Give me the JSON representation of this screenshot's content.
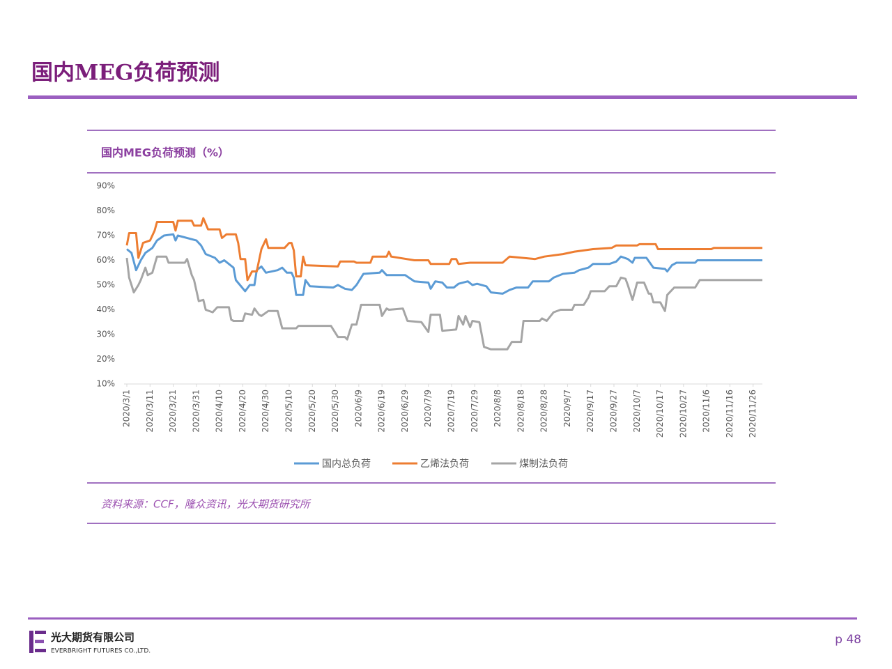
{
  "header": {
    "title": "国内MEG负荷预测"
  },
  "chart_data": {
    "type": "line",
    "title": "国内MEG负荷预测（%）",
    "source": "资料来源：CCF，隆众资讯，光大期货研究所",
    "xlim": [
      "2020/3/1",
      "2020/11/30"
    ],
    "xticks": [
      "2020/3/1",
      "2020/3/11",
      "2020/3/21",
      "2020/3/31",
      "2020/4/10",
      "2020/4/20",
      "2020/4/30",
      "2020/5/10",
      "2020/5/20",
      "2020/5/30",
      "2020/6/9",
      "2020/6/19",
      "2020/6/29",
      "2020/7/9",
      "2020/7/19",
      "2020/7/29",
      "2020/8/8",
      "2020/8/18",
      "2020/8/28",
      "2020/9/7",
      "2020/9/17",
      "2020/9/27",
      "2020/10/7",
      "2020/10/17",
      "2020/10/27",
      "2020/11/6",
      "2020/11/16",
      "2020/11/26"
    ],
    "ylim": [
      10,
      90
    ],
    "yticks": [
      {
        "value": 10,
        "label": "10%"
      },
      {
        "value": 20,
        "label": "20%"
      },
      {
        "value": 30,
        "label": "30%"
      },
      {
        "value": 40,
        "label": "40%"
      },
      {
        "value": 50,
        "label": "50%"
      },
      {
        "value": 60,
        "label": "60%"
      },
      {
        "value": 70,
        "label": "70%"
      },
      {
        "value": 80,
        "label": "80%"
      },
      {
        "value": 90,
        "label": "90%"
      }
    ],
    "grid": false,
    "series": [
      {
        "name": "国内总负荷",
        "color": "#5b9bd5",
        "x": [
          "2020/3/1",
          "2020/3/3",
          "2020/3/5",
          "2020/3/7",
          "2020/3/9",
          "2020/3/12",
          "2020/3/14",
          "2020/3/17",
          "2020/3/21",
          "2020/3/22",
          "2020/3/23",
          "2020/3/31",
          "2020/4/2",
          "2020/4/4",
          "2020/4/8",
          "2020/4/10",
          "2020/4/12",
          "2020/4/16",
          "2020/4/17",
          "2020/4/21",
          "2020/4/23",
          "2020/4/25",
          "2020/4/26",
          "2020/4/28",
          "2020/4/30",
          "2020/5/5",
          "2020/5/7",
          "2020/5/9",
          "2020/5/11",
          "2020/5/12",
          "2020/5/13",
          "2020/5/16",
          "2020/5/17",
          "2020/5/19",
          "2020/5/29",
          "2020/5/31",
          "2020/6/3",
          "2020/6/6",
          "2020/6/8",
          "2020/6/11",
          "2020/6/18",
          "2020/6/19",
          "2020/6/21",
          "2020/6/29",
          "2020/7/3",
          "2020/7/9",
          "2020/7/10",
          "2020/7/12",
          "2020/7/15",
          "2020/7/17",
          "2020/7/20",
          "2020/7/22",
          "2020/7/26",
          "2020/7/28",
          "2020/7/30",
          "2020/8/3",
          "2020/8/5",
          "2020/8/10",
          "2020/8/13",
          "2020/8/16",
          "2020/8/21",
          "2020/8/23",
          "2020/8/30",
          "2020/9/1",
          "2020/9/5",
          "2020/9/10",
          "2020/9/12",
          "2020/9/16",
          "2020/9/18",
          "2020/9/25",
          "2020/9/28",
          "2020/9/30",
          "2020/10/3",
          "2020/10/5",
          "2020/10/6",
          "2020/10/11",
          "2020/10/14",
          "2020/10/19",
          "2020/10/20",
          "2020/10/22",
          "2020/10/24",
          "2020/11/1",
          "2020/11/2",
          "2020/11/30"
        ],
        "values": [
          64.5,
          63,
          56,
          60,
          63,
          65,
          68,
          70,
          70.5,
          68,
          70,
          68,
          66,
          62.5,
          61,
          59,
          60,
          57,
          52,
          47.5,
          50,
          50,
          56,
          57.5,
          55,
          56,
          57,
          55,
          55,
          53,
          46,
          46,
          52,
          49.5,
          49,
          50,
          48.5,
          48,
          50,
          54.5,
          55,
          56,
          54,
          54,
          51.5,
          51,
          48.5,
          51.5,
          51,
          49,
          49,
          50.5,
          51.5,
          50,
          50.5,
          49.5,
          47,
          46.5,
          48,
          49,
          49,
          51.5,
          51.5,
          53,
          54.5,
          55,
          56,
          57,
          58.5,
          58.5,
          59.5,
          61.5,
          60.5,
          59,
          61,
          61,
          57,
          56.5,
          55.5,
          58,
          59,
          59,
          60,
          60
        ]
      },
      {
        "name": "乙烯法负荷",
        "color": "#ed7d31",
        "x": [
          "2020/3/1",
          "2020/3/2",
          "2020/3/5",
          "2020/3/6",
          "2020/3/8",
          "2020/3/11",
          "2020/3/13",
          "2020/3/14",
          "2020/3/21",
          "2020/3/22",
          "2020/3/23",
          "2020/3/29",
          "2020/3/30",
          "2020/4/2",
          "2020/4/3",
          "2020/4/5",
          "2020/4/10",
          "2020/4/11",
          "2020/4/13",
          "2020/4/17",
          "2020/4/18",
          "2020/4/19",
          "2020/4/21",
          "2020/4/22",
          "2020/4/24",
          "2020/4/26",
          "2020/4/28",
          "2020/4/30",
          "2020/5/1",
          "2020/5/8",
          "2020/5/10",
          "2020/5/11",
          "2020/5/12",
          "2020/5/13",
          "2020/5/15",
          "2020/5/16",
          "2020/5/17",
          "2020/5/31",
          "2020/6/1",
          "2020/6/7",
          "2020/6/8",
          "2020/6/14",
          "2020/6/15",
          "2020/6/21",
          "2020/6/22",
          "2020/6/23",
          "2020/7/3",
          "2020/7/9",
          "2020/7/10",
          "2020/7/18",
          "2020/7/19",
          "2020/7/21",
          "2020/7/22",
          "2020/7/27",
          "2020/8/10",
          "2020/8/13",
          "2020/8/24",
          "2020/8/28",
          "2020/9/5",
          "2020/9/10",
          "2020/9/18",
          "2020/9/26",
          "2020/9/28",
          "2020/10/7",
          "2020/10/8",
          "2020/10/15",
          "2020/10/16",
          "2020/11/8",
          "2020/11/9",
          "2020/11/30"
        ],
        "values": [
          66,
          71,
          71,
          61,
          67,
          68,
          72,
          75.5,
          75.5,
          72,
          76,
          76,
          74,
          74,
          77,
          72.5,
          72.5,
          69,
          70.5,
          70.5,
          67,
          60.5,
          60.5,
          52,
          55.5,
          55.5,
          64.5,
          68.5,
          65,
          65,
          67,
          67,
          64,
          53.5,
          53.5,
          61.5,
          58,
          57.5,
          59.5,
          59.5,
          59,
          59,
          61.5,
          61.5,
          63.5,
          61.5,
          60,
          60,
          58.5,
          58.5,
          60.5,
          60.5,
          58.5,
          59,
          59,
          61.5,
          60.5,
          61.5,
          62.5,
          63.5,
          64.5,
          65,
          66,
          66,
          66.5,
          66.5,
          64.5,
          64.5,
          65,
          65
        ]
      },
      {
        "name": "煤制法负荷",
        "color": "#a5a5a5",
        "x": [
          "2020/3/1",
          "2020/3/2",
          "2020/3/3",
          "2020/3/4",
          "2020/3/6",
          "2020/3/7",
          "2020/3/9",
          "2020/3/10",
          "2020/3/12",
          "2020/3/14",
          "2020/3/18",
          "2020/3/19",
          "2020/3/26",
          "2020/3/27",
          "2020/3/29",
          "2020/3/30",
          "2020/4/1",
          "2020/4/3",
          "2020/4/4",
          "2020/4/7",
          "2020/4/9",
          "2020/4/14",
          "2020/4/15",
          "2020/4/16",
          "2020/4/20",
          "2020/4/21",
          "2020/4/24",
          "2020/4/25",
          "2020/4/27",
          "2020/4/28",
          "2020/5/1",
          "2020/5/5",
          "2020/5/7",
          "2020/5/13",
          "2020/5/14",
          "2020/5/28",
          "2020/5/31",
          "2020/6/3",
          "2020/6/4",
          "2020/6/6",
          "2020/6/8",
          "2020/6/10",
          "2020/6/18",
          "2020/6/19",
          "2020/6/21",
          "2020/6/22",
          "2020/6/28",
          "2020/6/30",
          "2020/7/6",
          "2020/7/9",
          "2020/7/10",
          "2020/7/14",
          "2020/7/15",
          "2020/7/21",
          "2020/7/22",
          "2020/7/24",
          "2020/7/25",
          "2020/7/27",
          "2020/7/28",
          "2020/7/31",
          "2020/8/2",
          "2020/8/5",
          "2020/8/12",
          "2020/8/14",
          "2020/8/18",
          "2020/8/19",
          "2020/8/26",
          "2020/8/27",
          "2020/8/29",
          "2020/9/1",
          "2020/9/4",
          "2020/9/9",
          "2020/9/10",
          "2020/9/14",
          "2020/9/16",
          "2020/9/17",
          "2020/9/23",
          "2020/9/25",
          "2020/9/28",
          "2020/9/30",
          "2020/10/2",
          "2020/10/3",
          "2020/10/5",
          "2020/10/7",
          "2020/10/10",
          "2020/10/12",
          "2020/10/13",
          "2020/10/14",
          "2020/10/17",
          "2020/10/19",
          "2020/10/20",
          "2020/10/23",
          "2020/11/1",
          "2020/11/3",
          "2020/11/30"
        ],
        "values": [
          61,
          53,
          50,
          47,
          50,
          52,
          57,
          54,
          55,
          61.5,
          61.5,
          59,
          59,
          60.5,
          54,
          52,
          43.5,
          44,
          40,
          39,
          41,
          41,
          36,
          35.5,
          35.5,
          38.5,
          38,
          40.5,
          38,
          37.5,
          39.5,
          39.5,
          32.5,
          32.5,
          33.5,
          33.5,
          29,
          29,
          28,
          34,
          34,
          42,
          42,
          37.5,
          40.5,
          40,
          40.5,
          35.5,
          35,
          31,
          38,
          38,
          31.5,
          32,
          37.5,
          34,
          37.5,
          33,
          35.5,
          35,
          25,
          24,
          24,
          27,
          27,
          35.5,
          35.5,
          36.5,
          35.5,
          39,
          40,
          40,
          42,
          42,
          45,
          47.5,
          47.5,
          49.5,
          49.5,
          53,
          52.5,
          50,
          44,
          51,
          51,
          46.5,
          46.5,
          43,
          43,
          39.5,
          46,
          49,
          49,
          52,
          52
        ]
      }
    ]
  },
  "footer": {
    "company": "光大期货有限公司",
    "company_en": "EVERBRIGHT FUTURES CO.,LTD.",
    "page": "p 48"
  }
}
